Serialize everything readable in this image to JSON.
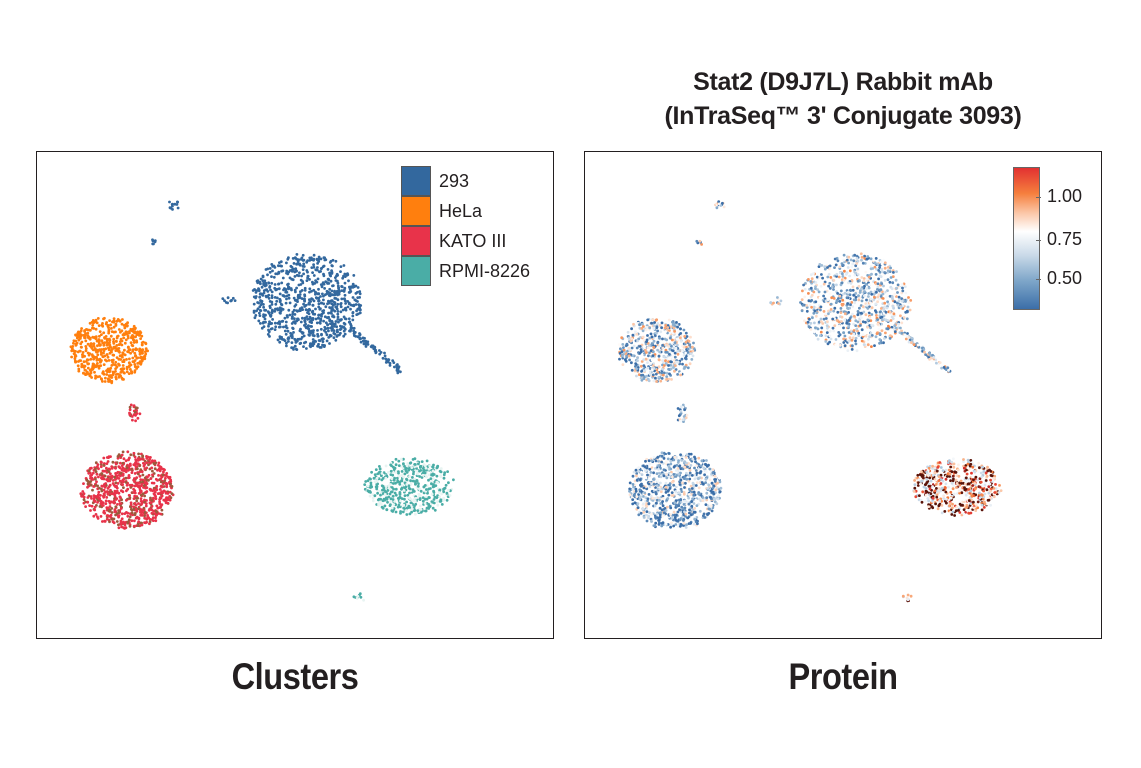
{
  "title": {
    "line1": "Stat2 (D9J7L) Rabbit mAb",
    "line2": "(InTraSeq™ 3' Conjugate 3093)"
  },
  "panels": {
    "left_caption": "Clusters",
    "right_caption": "Protein"
  },
  "chart_data": [
    {
      "type": "scatter",
      "name": "Clusters",
      "title": "",
      "xlabel": "",
      "ylabel": "",
      "axis": "UMAP embedding (no ticks)",
      "legend": "top-right",
      "series": [
        {
          "name": "293",
          "color": "#33689e",
          "cluster_centers": [
            [
              5.6,
              7.5
            ],
            [
              -6.0,
              8.2
            ],
            [
              -3.5,
              8.9
            ]
          ]
        },
        {
          "name": "HeLa",
          "color": "#ff7f0e",
          "cluster_centers": [
            [
              -8.3,
              4.9
            ]
          ]
        },
        {
          "name": "KATO III",
          "color": "#e8334a",
          "cluster_centers": [
            [
              -7.6,
              -2.3
            ],
            [
              -7.2,
              2.4
            ]
          ]
        },
        {
          "name": "RPMI-8226",
          "color": "#4aada6",
          "cluster_centers": [
            [
              7.9,
              -2.0
            ],
            [
              3.9,
              -7.3
            ]
          ]
        }
      ]
    },
    {
      "type": "scatter",
      "name": "Protein",
      "title": "Stat2 (D9J7L) Rabbit mAb (InTraSeq™ 3' Conjugate 3093)",
      "xlabel": "",
      "ylabel": "",
      "legend": "top-right",
      "colorbar": {
        "ticks": [
          "0.50",
          "0.75",
          "1.00"
        ],
        "tick_values": [
          0.5,
          0.75,
          1.0
        ],
        "range": [
          0.33,
          1.15
        ],
        "colors": [
          "#3b6ea8",
          "#ffffff",
          "#e23131"
        ]
      },
      "cluster_mean_expression": {
        "293": 0.62,
        "HeLa": 0.6,
        "KATO III": 0.52,
        "RPMI-8226": 0.95
      }
    }
  ],
  "legend": {
    "items": [
      {
        "label": "293",
        "color": "#33689e"
      },
      {
        "label": "HeLa",
        "color": "#ff7f0e"
      },
      {
        "label": "KATO III",
        "color": "#e8334a"
      },
      {
        "label": "RPMI-8226",
        "color": "#4aada6"
      }
    ]
  }
}
